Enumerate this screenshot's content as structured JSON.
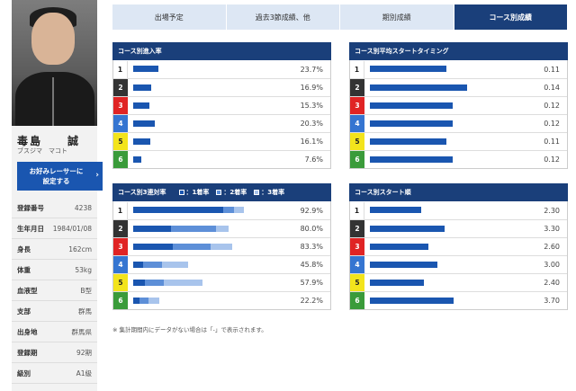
{
  "racer": {
    "name": "毒島　　誠",
    "kana": "ブスジマ　マコト",
    "fav_button": [
      "お好みレーサーに",
      "設定する"
    ],
    "profile": [
      {
        "label": "登録番号",
        "value": "4238"
      },
      {
        "label": "生年月日",
        "value": "1984/01/08"
      },
      {
        "label": "身長",
        "value": "162cm"
      },
      {
        "label": "体重",
        "value": "53kg"
      },
      {
        "label": "血液型",
        "value": "B型"
      },
      {
        "label": "支部",
        "value": "群馬"
      },
      {
        "label": "出身地",
        "value": "群馬県"
      },
      {
        "label": "登録期",
        "value": "92期"
      },
      {
        "label": "級別",
        "value": "A1級"
      }
    ]
  },
  "tabs": [
    {
      "label": "出場予定",
      "active": false
    },
    {
      "label": "過去3節成績、他",
      "active": false
    },
    {
      "label": "期別成績",
      "active": false
    },
    {
      "label": "コース別成績",
      "active": true
    }
  ],
  "panels": {
    "entry_rate": {
      "title": "コース別進入率",
      "rows": [
        {
          "lane": "1",
          "value": 23.7,
          "label": "23.7%"
        },
        {
          "lane": "2",
          "value": 16.9,
          "label": "16.9%"
        },
        {
          "lane": "3",
          "value": 15.3,
          "label": "15.3%"
        },
        {
          "lane": "4",
          "value": 20.3,
          "label": "20.3%"
        },
        {
          "lane": "5",
          "value": 16.1,
          "label": "16.1%"
        },
        {
          "lane": "6",
          "value": 7.6,
          "label": "7.6%"
        }
      ]
    },
    "start_timing": {
      "title": "コース別平均スタートタイミング",
      "rows": [
        {
          "lane": "1",
          "value": 0.11,
          "label": "0.11"
        },
        {
          "lane": "2",
          "value": 0.14,
          "label": "0.14"
        },
        {
          "lane": "3",
          "value": 0.12,
          "label": "0.12"
        },
        {
          "lane": "4",
          "value": 0.12,
          "label": "0.12"
        },
        {
          "lane": "5",
          "value": 0.11,
          "label": "0.11"
        },
        {
          "lane": "6",
          "value": 0.12,
          "label": "0.12"
        }
      ]
    },
    "top3_rate": {
      "title": "コース別3連対率",
      "legend": [
        "：1着率",
        "：2着率",
        "：3着率"
      ],
      "rows": [
        {
          "lane": "1",
          "segments": [
            76,
            9,
            8
          ],
          "label": "92.9%"
        },
        {
          "lane": "2",
          "segments": [
            32,
            38,
            10
          ],
          "label": "80.0%"
        },
        {
          "lane": "3",
          "segments": [
            33,
            32,
            18
          ],
          "label": "83.3%"
        },
        {
          "lane": "4",
          "segments": [
            8,
            16,
            22
          ],
          "label": "45.8%"
        },
        {
          "lane": "5",
          "segments": [
            10,
            16,
            32
          ],
          "label": "57.9%"
        },
        {
          "lane": "6",
          "segments": [
            5,
            8,
            9
          ],
          "label": "22.2%"
        }
      ]
    },
    "start_rank": {
      "title": "コース別スタート順",
      "rows": [
        {
          "lane": "1",
          "value": 2.3,
          "label": "2.30"
        },
        {
          "lane": "2",
          "value": 3.3,
          "label": "3.30"
        },
        {
          "lane": "3",
          "value": 2.6,
          "label": "2.60"
        },
        {
          "lane": "4",
          "value": 3.0,
          "label": "3.00"
        },
        {
          "lane": "5",
          "value": 2.4,
          "label": "2.40"
        },
        {
          "lane": "6",
          "value": 3.7,
          "label": "3.70"
        }
      ]
    }
  },
  "note": "※ 集計期間内にデータがない場合は「-」で表示されます。",
  "colors": {
    "header": "#1a3f7a",
    "bar_primary": "#1a56b0",
    "bar_secondary": "#5d8fd8",
    "bar_tertiary": "#a8c4ec",
    "button": "#1a56b0"
  }
}
